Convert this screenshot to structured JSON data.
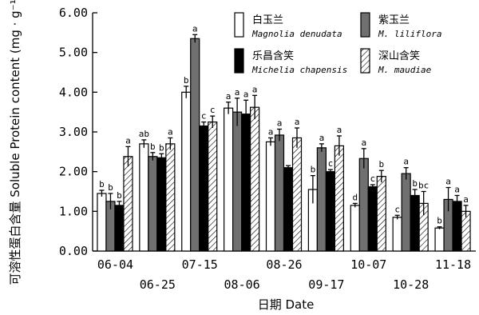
{
  "chart_data": {
    "type": "bar",
    "title": "",
    "ylabel": "可溶性蛋白含量 Soluble Protein content (mg · g⁻¹)",
    "xlabel": "日期 Date",
    "ylim": [
      0,
      6
    ],
    "yticks": [
      "0.00",
      "1.00",
      "2.00",
      "3.00",
      "4.00",
      "5.00",
      "6.00"
    ],
    "categories": [
      "06-04",
      "06-25",
      "07-15",
      "08-06",
      "08-26",
      "09-17",
      "10-07",
      "10-28",
      "11-18"
    ],
    "legend_position": "top-right",
    "series": [
      {
        "name": "白玉兰",
        "latin": "Magnolia denudata",
        "fill": "#ffffff",
        "pattern": "solid",
        "values": [
          1.45,
          2.7,
          4.0,
          3.6,
          2.75,
          1.55,
          1.15,
          0.85,
          0.58
        ],
        "errors": [
          0.08,
          0.1,
          0.15,
          0.15,
          0.1,
          0.35,
          0.05,
          0.05,
          0.03
        ],
        "labels": [
          "b",
          "ab",
          "b",
          "a",
          "a",
          "b",
          "d",
          "c",
          "b"
        ]
      },
      {
        "name": "紫玉兰",
        "latin": "M. liliflora",
        "fill": "#707070",
        "pattern": "solid",
        "values": [
          1.25,
          2.38,
          5.35,
          3.5,
          2.92,
          2.6,
          2.33,
          1.95,
          1.3
        ],
        "errors": [
          0.2,
          0.1,
          0.1,
          0.35,
          0.15,
          0.1,
          0.25,
          0.15,
          0.3
        ],
        "labels": [
          "b",
          "b",
          "a",
          "a",
          "a",
          "a",
          "a",
          "a",
          "a"
        ]
      },
      {
        "name": "乐昌含笑",
        "latin": "Michelia chapensis",
        "fill": "#000000",
        "pattern": "solid",
        "values": [
          1.15,
          2.35,
          3.15,
          3.45,
          2.1,
          2.0,
          1.62,
          1.4,
          1.25
        ],
        "errors": [
          0.1,
          0.1,
          0.1,
          0.35,
          0.05,
          0.05,
          0.05,
          0.15,
          0.15
        ],
        "labels": [
          "b",
          "b",
          "c",
          "a",
          "",
          "c",
          "c",
          "b",
          "a"
        ]
      },
      {
        "name": "深山含笑",
        "latin": "M. maudiae",
        "fill": "#ffffff",
        "pattern": "hatch",
        "values": [
          2.38,
          2.7,
          3.25,
          3.62,
          2.85,
          2.65,
          1.88,
          1.2,
          1.0
        ],
        "errors": [
          0.25,
          0.15,
          0.15,
          0.3,
          0.25,
          0.25,
          0.15,
          0.3,
          0.15
        ],
        "labels": [
          "a",
          "a",
          "c",
          "a",
          "a",
          "a",
          "b",
          "bc",
          "a"
        ]
      }
    ]
  }
}
